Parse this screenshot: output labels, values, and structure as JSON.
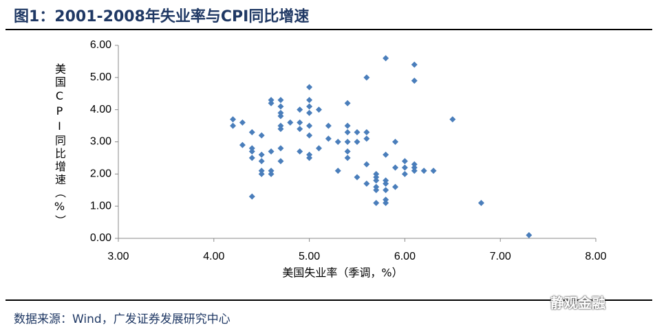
{
  "header": {
    "title": "图1：2001-2008年失业率与CPI同比增速"
  },
  "chart_data": {
    "type": "scatter",
    "xlabel": "美国失业率（季调，%）",
    "ylabel": "美国CPI同比增速（%）",
    "color": "#4a7ebb",
    "x": [
      4.2,
      4.2,
      4.3,
      4.3,
      4.4,
      4.4,
      4.4,
      4.4,
      4.4,
      4.5,
      4.5,
      4.5,
      4.5,
      4.5,
      4.6,
      4.6,
      4.6,
      4.6,
      4.6,
      4.7,
      4.7,
      4.7,
      4.7,
      4.7,
      4.7,
      4.7,
      4.7,
      4.8,
      4.9,
      4.9,
      4.9,
      4.9,
      5.0,
      5.0,
      5.0,
      5.0,
      5.0,
      5.0,
      5.0,
      5.0,
      5.1,
      5.1,
      5.2,
      5.2,
      5.3,
      5.3,
      5.4,
      5.4,
      5.4,
      5.4,
      5.4,
      5.4,
      5.5,
      5.5,
      5.5,
      5.6,
      5.6,
      5.6,
      5.6,
      5.6,
      5.7,
      5.7,
      5.7,
      5.7,
      5.7,
      5.7,
      5.8,
      5.8,
      5.8,
      5.8,
      5.8,
      5.8,
      5.8,
      5.9,
      5.9,
      5.9,
      6.0,
      6.0,
      6.0,
      6.1,
      6.1,
      6.1,
      6.1,
      6.1,
      6.2,
      6.3,
      6.5,
      6.8,
      7.3
    ],
    "values": [
      3.7,
      3.5,
      3.6,
      2.9,
      3.3,
      2.8,
      2.7,
      2.5,
      1.3,
      3.2,
      2.6,
      2.4,
      2.1,
      2.0,
      4.3,
      4.2,
      2.7,
      2.1,
      2.0,
      4.3,
      4.1,
      3.9,
      3.8,
      3.5,
      3.4,
      2.8,
      2.4,
      3.6,
      4.0,
      3.6,
      3.4,
      2.7,
      4.7,
      4.3,
      4.1,
      3.9,
      3.5,
      3.2,
      2.6,
      2.5,
      4.0,
      2.8,
      3.5,
      3.1,
      3.0,
      2.1,
      4.2,
      3.5,
      3.3,
      3.0,
      2.7,
      2.5,
      3.3,
      3.0,
      1.9,
      5.0,
      3.3,
      3.1,
      2.3,
      1.7,
      2.0,
      1.9,
      1.8,
      1.6,
      1.5,
      1.1,
      5.6,
      2.6,
      1.8,
      1.7,
      1.5,
      1.2,
      1.1,
      3.0,
      2.2,
      1.6,
      2.4,
      2.2,
      2.0,
      5.4,
      4.9,
      2.3,
      2.2,
      2.1,
      2.1,
      2.1,
      3.7,
      1.1,
      0.1
    ],
    "xlim": [
      3,
      8
    ],
    "xticks": [
      {
        "value": 3,
        "label": "3.00"
      },
      {
        "value": 4,
        "label": "4.00"
      },
      {
        "value": 5,
        "label": "5.00"
      },
      {
        "value": 6,
        "label": "6.00"
      },
      {
        "value": 7,
        "label": "7.00"
      },
      {
        "value": 8,
        "label": "8.00"
      }
    ],
    "ylim": [
      0,
      6
    ],
    "yticks": [
      {
        "value": 0,
        "label": "0.00"
      },
      {
        "value": 1,
        "label": "1.00"
      },
      {
        "value": 2,
        "label": "2.00"
      },
      {
        "value": 3,
        "label": "3.00"
      },
      {
        "value": 4,
        "label": "4.00"
      },
      {
        "value": 5,
        "label": "5.00"
      },
      {
        "value": 6,
        "label": "6.00"
      }
    ]
  },
  "footer": {
    "source": "数据来源：Wind，广发证券发展研究中心",
    "watermark": "静观金融"
  }
}
